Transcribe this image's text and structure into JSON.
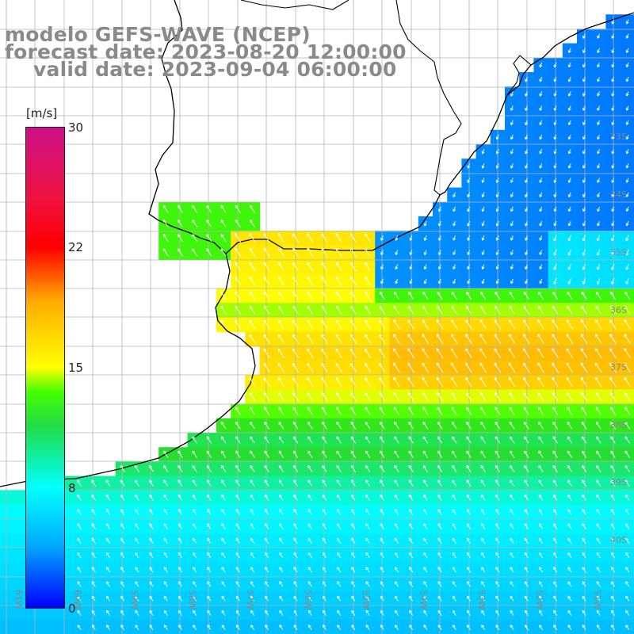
{
  "title": {
    "line1": "modelo GEFS-WAVE (NCEP)",
    "line2": "forecast date: 2023-08-20 12:00:00",
    "line3": "valid date: 2023-09-04 06:00:00"
  },
  "colorbar": {
    "unit": "[m/s]",
    "ticks": [
      {
        "label": "30",
        "value": 30
      },
      {
        "label": "22",
        "value": 22
      },
      {
        "label": "15",
        "value": 15
      },
      {
        "label": "8",
        "value": 8
      },
      {
        "label": "0",
        "value": 0
      }
    ]
  },
  "lat_labels": [
    "33S",
    "34S",
    "35S",
    "36S",
    "37S",
    "38S",
    "39S",
    "40S"
  ],
  "lon_labels": [
    "61W",
    "60W",
    "59W",
    "58W",
    "57W",
    "56W",
    "55W",
    "54W",
    "53W",
    "52W",
    "51W"
  ],
  "colors": {
    "land": "#ffffff",
    "grid": "#b4b4b4",
    "coast": "#000000",
    "arrow": "#ffffff",
    "title": "#8a8a8a"
  }
}
